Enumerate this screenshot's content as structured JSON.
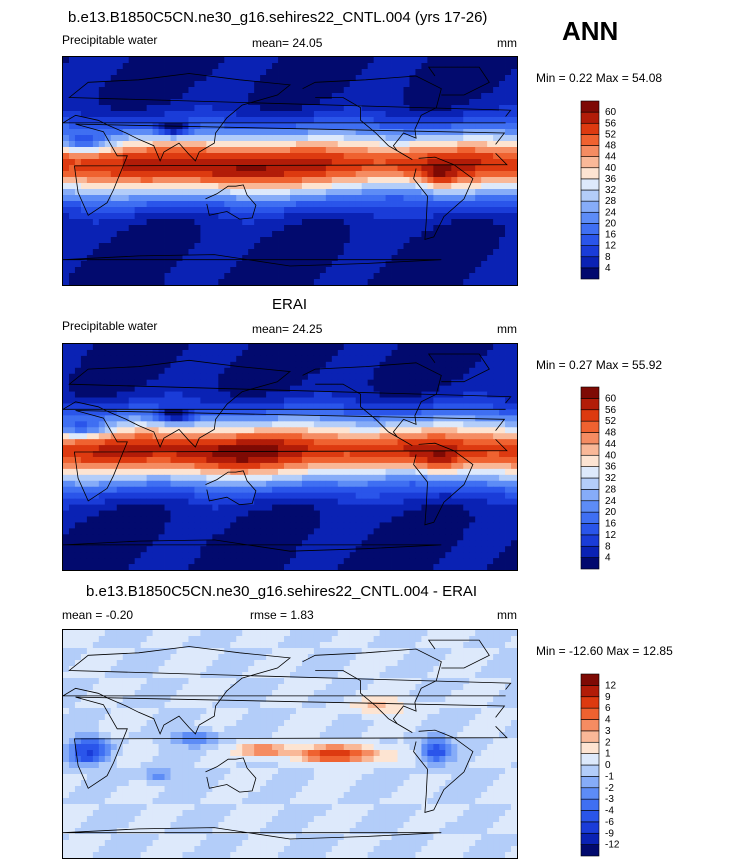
{
  "season_label": "ANN",
  "panels": [
    {
      "title": "b.e13.B1850C5CN.ne30_g16.sehires22_CNTL.004 (yrs 17-26)",
      "left_label": "Precipitable water",
      "stat_text": "mean=  24.05",
      "units": "mm",
      "minmax": "Min =   0.22 Max =  54.08"
    },
    {
      "title": "ERAI",
      "left_label": "Precipitable water",
      "stat_text": "mean=  24.25",
      "units": "mm",
      "minmax": "Min =   0.27 Max =  55.92"
    },
    {
      "title": "b.e13.B1850C5CN.ne30_g16.sehires22_CNTL.004 - ERAI",
      "left_label": "mean =  -0.20",
      "stat_text": "rmse =    1.83",
      "units": "mm",
      "minmax": "Min = -12.60 Max =  12.85"
    }
  ],
  "chart_data": [
    {
      "type": "heatmap",
      "title": "b.e13.B1850C5CN.ne30_g16.sehires22_CNTL.004 (yrs 17-26)",
      "variable": "Precipitable water",
      "units": "mm",
      "mean": 24.05,
      "min": 0.22,
      "max": 54.08,
      "colorbar_levels": [
        4,
        8,
        12,
        16,
        20,
        24,
        28,
        32,
        36,
        40,
        44,
        48,
        52,
        56,
        60
      ],
      "colors": [
        "#020a6e",
        "#0a22b4",
        "#1a3cd8",
        "#2a55ea",
        "#3f6ff2",
        "#5d8cf6",
        "#86acf8",
        "#b3cdf9",
        "#dde9fb",
        "#fde4d2",
        "#f9b898",
        "#f58c62",
        "#ef6230",
        "#dd3a10",
        "#b21c08",
        "#7e0a04"
      ]
    },
    {
      "type": "heatmap",
      "title": "ERAI",
      "variable": "Precipitable water",
      "units": "mm",
      "mean": 24.25,
      "min": 0.27,
      "max": 55.92,
      "colorbar_levels": [
        4,
        8,
        12,
        16,
        20,
        24,
        28,
        32,
        36,
        40,
        44,
        48,
        52,
        56,
        60
      ],
      "colors": [
        "#020a6e",
        "#0a22b4",
        "#1a3cd8",
        "#2a55ea",
        "#3f6ff2",
        "#5d8cf6",
        "#86acf8",
        "#b3cdf9",
        "#dde9fb",
        "#fde4d2",
        "#f9b898",
        "#f58c62",
        "#ef6230",
        "#dd3a10",
        "#b21c08",
        "#7e0a04"
      ]
    },
    {
      "type": "heatmap",
      "title": "b.e13.B1850C5CN.ne30_g16.sehires22_CNTL.004 - ERAI",
      "units": "mm",
      "mean": -0.2,
      "rmse": 1.83,
      "min": -12.6,
      "max": 12.85,
      "colorbar_levels": [
        -12,
        -9,
        -6,
        -4,
        -3,
        -2,
        -1,
        0,
        1,
        2,
        3,
        4,
        6,
        9,
        12
      ],
      "colors": [
        "#020a6e",
        "#0a22b4",
        "#1a3cd8",
        "#2a55ea",
        "#3f6ff2",
        "#5d8cf6",
        "#86acf8",
        "#b3cdf9",
        "#dde9fb",
        "#fde4d2",
        "#f9b898",
        "#f58c62",
        "#ef6230",
        "#dd3a10",
        "#b21c08",
        "#7e0a04"
      ]
    }
  ]
}
